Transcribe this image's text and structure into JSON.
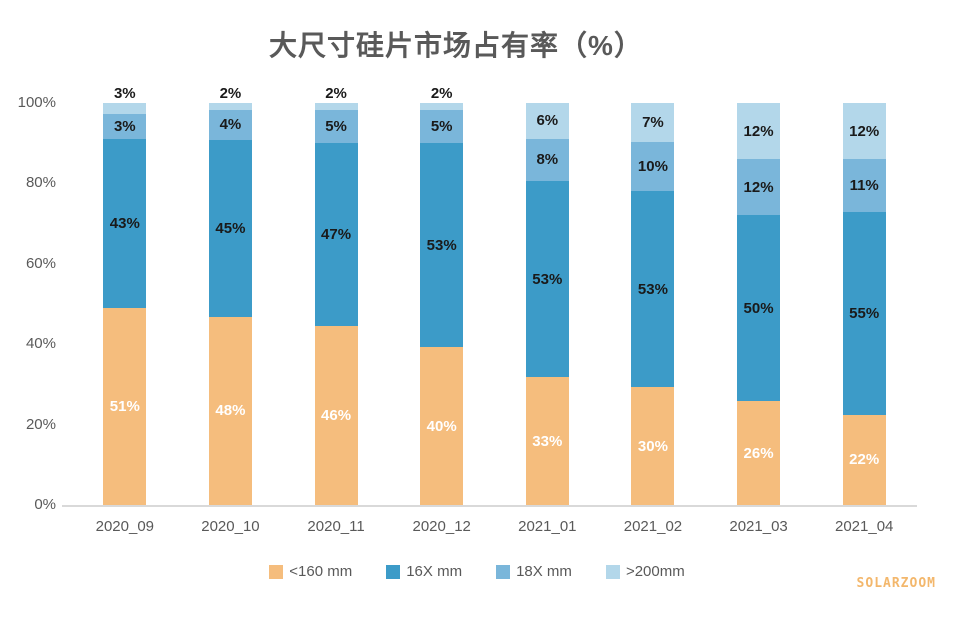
{
  "title": "大尺寸硅片市场占有率（%）",
  "watermark": "SOLARZOOM",
  "colors": {
    "series_lt160": "#F5BD7D",
    "series_16x": "#3C9BC8",
    "series_18x": "#7AB6DA",
    "series_gt200": "#B3D7EA",
    "axis_line": "#D9D9D9",
    "text_gray": "#595959",
    "label_dark": "#1A1A1A",
    "label_light": "#FFFFFF"
  },
  "y_axis": {
    "ticks": [
      "0%",
      "20%",
      "40%",
      "60%",
      "80%",
      "100%"
    ]
  },
  "chart_data": {
    "type": "bar",
    "stacked": true,
    "percent_stack": true,
    "title": "大尺寸硅片市场占有率（%）",
    "xlabel": "",
    "ylabel": "",
    "ylim": [
      0,
      100
    ],
    "grid": false,
    "legend_position": "bottom",
    "categories": [
      "2020_09",
      "2020_10",
      "2020_11",
      "2020_12",
      "2021_01",
      "2021_02",
      "2021_03",
      "2021_04"
    ],
    "series": [
      {
        "name": "<160 mm",
        "color": "#F5BD7D",
        "label_color": "#FFFFFF",
        "values": [
          51,
          48,
          46,
          40,
          33,
          30,
          26,
          22
        ]
      },
      {
        "name": "16X mm",
        "color": "#3C9BC8",
        "label_color": "#1A1A1A",
        "values": [
          43,
          45,
          47,
          53,
          53,
          53,
          50,
          55
        ]
      },
      {
        "name": "18X mm",
        "color": "#7AB6DA",
        "label_color": "#1A1A1A",
        "values": [
          3,
          4,
          5,
          5,
          8,
          10,
          12,
          11
        ]
      },
      {
        "name": ">200mm",
        "color": "#B3D7EA",
        "label_color": "#1A1A1A",
        "values": [
          3,
          2,
          2,
          2,
          6,
          7,
          12,
          12
        ]
      }
    ],
    "data_label_suffix": "%"
  }
}
